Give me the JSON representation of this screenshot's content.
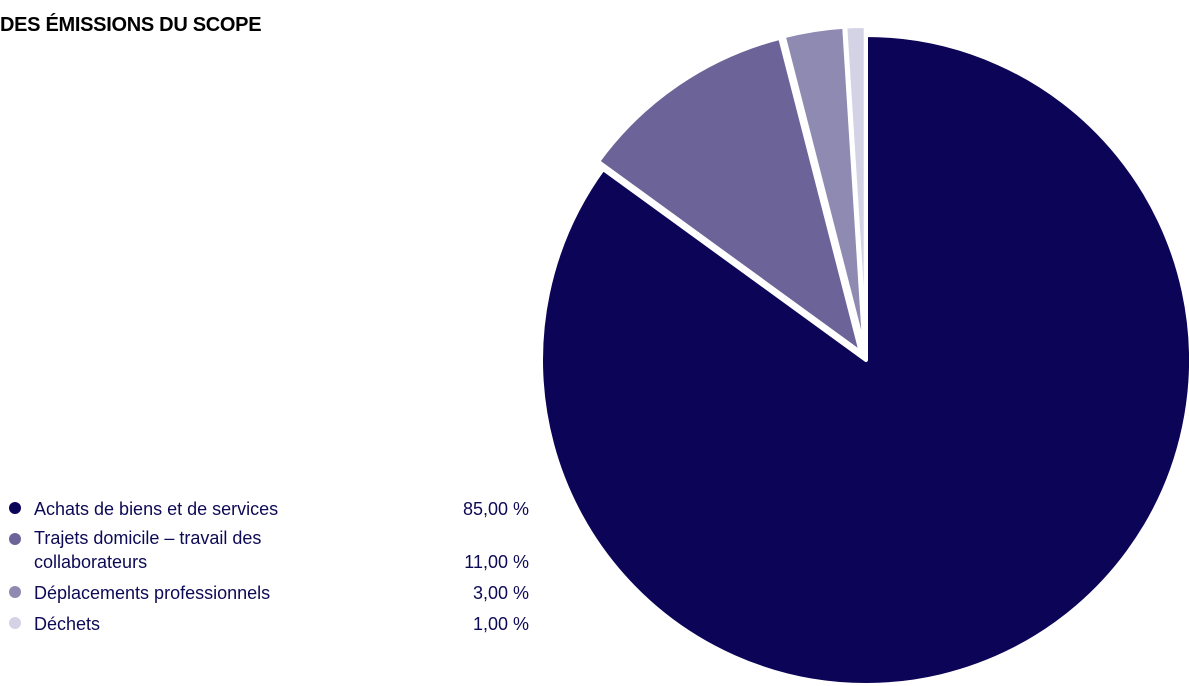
{
  "chart_data": {
    "type": "pie",
    "title": "DES ÉMISSIONS DU SCOPE",
    "legend_position": "left",
    "slices": [
      {
        "label": "Achats de biens et de services",
        "value": 85,
        "display": "85,00 %",
        "color": "#0c0456"
      },
      {
        "label": "Trajets domicile – travail des collaborateurs",
        "value": 11,
        "display": "11,00 %",
        "color": "#6c6499"
      },
      {
        "label": "Déplacements professionnels",
        "value": 3,
        "display": "3,00 %",
        "color": "#8e8ab2"
      },
      {
        "label": "Déchets",
        "value": 1,
        "display": "1,00 %",
        "color": "#d4d3e6"
      }
    ]
  }
}
